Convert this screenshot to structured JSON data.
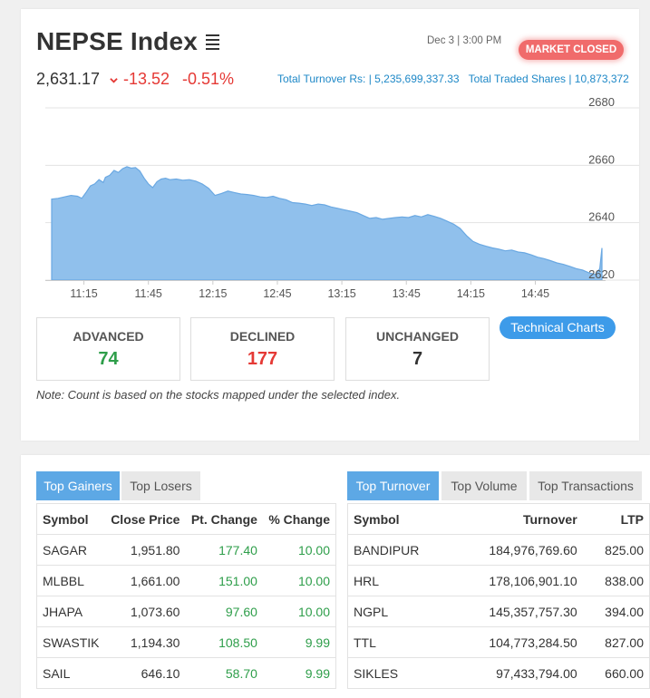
{
  "header": {
    "title": "NEPSE Index",
    "date": "Dec 3",
    "time": "3:00 PM",
    "market_status": "MARKET CLOSED",
    "index_value": "2,631.17",
    "point_change": "-13.52",
    "percent_change": "-0.51%",
    "turnover_label": "Total Turnover Rs:",
    "turnover_value": "5,235,699,337.33",
    "shares_label": "Total Traded Shares",
    "shares_value": "10,873,372"
  },
  "colors": {
    "negative": "#e53935",
    "positive": "#2e9e4a",
    "accent": "#3d9be9",
    "chart_fill": "#90c0ec",
    "chart_line": "#6aa8e2"
  },
  "chart_data": {
    "type": "area",
    "x_ticks": [
      "11:15",
      "11:45",
      "12:15",
      "12:45",
      "13:15",
      "13:45",
      "14:15",
      "14:45"
    ],
    "y_ticks": [
      "2680",
      "2660",
      "2640",
      "2620"
    ],
    "ylim": [
      2620,
      2680
    ],
    "x_minutes": [
      0,
      3,
      6,
      9,
      12,
      14,
      16,
      18,
      20,
      22,
      24,
      25,
      27,
      29,
      31,
      33,
      35,
      37,
      39,
      41,
      43,
      45,
      47,
      49,
      51,
      53,
      55,
      58,
      61,
      64,
      67,
      70,
      73,
      76,
      79,
      82,
      85,
      88,
      91,
      94,
      97,
      100,
      103,
      106,
      109,
      112,
      115,
      118,
      121,
      124,
      127,
      130,
      133,
      136,
      139,
      142,
      145,
      148,
      151,
      154,
      157,
      160,
      163,
      166,
      169,
      172,
      175,
      178,
      181,
      184,
      187,
      190,
      193,
      196,
      199,
      202,
      205,
      208,
      211,
      214,
      217,
      220,
      223,
      226,
      229,
      232,
      235,
      238,
      241,
      244,
      247,
      250,
      253,
      255,
      256
    ],
    "values": [
      2648.2,
      2648.5,
      2649.0,
      2649.5,
      2649.2,
      2648.5,
      2650.5,
      2652.8,
      2653.5,
      2655.0,
      2654.0,
      2655.8,
      2656.5,
      2658.2,
      2657.5,
      2658.8,
      2659.5,
      2659.0,
      2659.2,
      2658.0,
      2655.5,
      2653.5,
      2652.2,
      2654.3,
      2655.2,
      2655.5,
      2655.0,
      2655.2,
      2654.8,
      2655.0,
      2654.5,
      2653.5,
      2652.0,
      2649.5,
      2650.2,
      2651.0,
      2650.5,
      2650.0,
      2649.8,
      2649.5,
      2649.0,
      2648.8,
      2649.2,
      2648.5,
      2648.0,
      2647.0,
      2646.8,
      2646.5,
      2646.0,
      2646.5,
      2646.2,
      2645.5,
      2645.0,
      2644.5,
      2644.0,
      2643.5,
      2642.5,
      2641.5,
      2641.8,
      2641.2,
      2641.5,
      2641.8,
      2642.0,
      2641.8,
      2642.5,
      2642.0,
      2642.8,
      2642.2,
      2641.5,
      2640.5,
      2639.5,
      2638.0,
      2635.5,
      2633.5,
      2632.5,
      2631.8,
      2631.2,
      2630.8,
      2630.2,
      2630.5,
      2629.8,
      2629.5,
      2628.8,
      2628.0,
      2627.5,
      2626.8,
      2626.0,
      2625.5,
      2624.8,
      2624.0,
      2623.5,
      2622.5,
      2622.0,
      2624.0,
      2631.17
    ]
  },
  "stats": {
    "advanced_label": "ADVANCED",
    "advanced_value": "74",
    "declined_label": "DECLINED",
    "declined_value": "177",
    "unchanged_label": "UNCHANGED",
    "unchanged_value": "7"
  },
  "technical_charts_label": "Technical Charts",
  "note": "Note: Count is based on the stocks mapped under the selected index.",
  "gainers_tabs": [
    "Top Gainers",
    "Top Losers"
  ],
  "gainers_headers": [
    "Symbol",
    "Close Price",
    "Pt. Change",
    "% Change"
  ],
  "gainers": [
    {
      "symbol": "SAGAR",
      "close": "1,951.80",
      "pt": "177.40",
      "pct": "10.00"
    },
    {
      "symbol": "MLBBL",
      "close": "1,661.00",
      "pt": "151.00",
      "pct": "10.00"
    },
    {
      "symbol": "JHAPA",
      "close": "1,073.60",
      "pt": "97.60",
      "pct": "10.00"
    },
    {
      "symbol": "SWASTIK",
      "close": "1,194.30",
      "pt": "108.50",
      "pct": "9.99"
    },
    {
      "symbol": "SAIL",
      "close": "646.10",
      "pt": "58.70",
      "pct": "9.99"
    }
  ],
  "turnover_tabs": [
    "Top Turnover",
    "Top Volume",
    "Top Transactions"
  ],
  "turnover_headers": [
    "Symbol",
    "Turnover",
    "LTP"
  ],
  "turnover_rows": [
    {
      "symbol": "BANDIPUR",
      "turnover": "184,976,769.60",
      "ltp": "825.00"
    },
    {
      "symbol": "HRL",
      "turnover": "178,106,901.10",
      "ltp": "838.00"
    },
    {
      "symbol": "NGPL",
      "turnover": "145,357,757.30",
      "ltp": "394.00"
    },
    {
      "symbol": "TTL",
      "turnover": "104,773,284.50",
      "ltp": "827.00"
    },
    {
      "symbol": "SIKLES",
      "turnover": "97,433,794.00",
      "ltp": "660.00"
    }
  ]
}
